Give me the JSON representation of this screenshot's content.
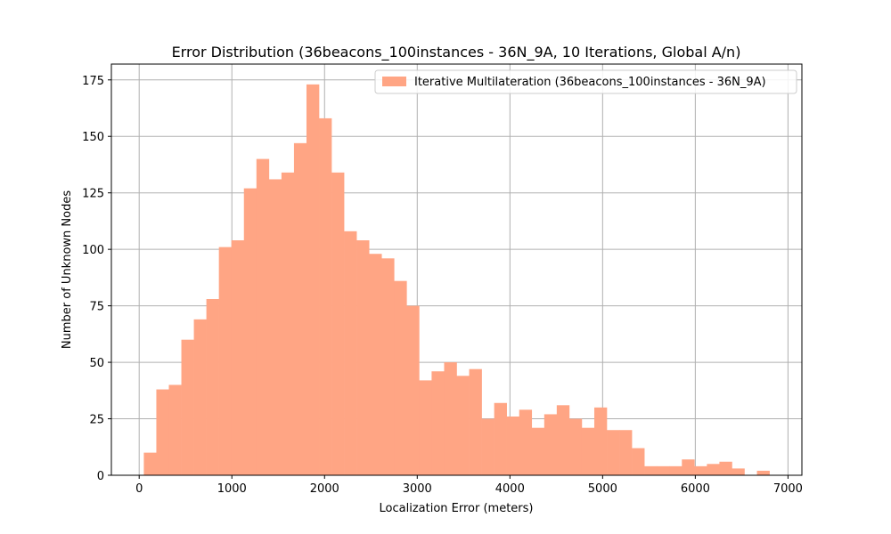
{
  "chart_data": {
    "type": "bar",
    "title": "Error Distribution (36beacons_100instances - 36N_9A, 10 Iterations, Global A/n)",
    "xlabel": "Localization Error (meters)",
    "ylabel": "Number of Unknown Nodes",
    "xlim": [
      -300,
      7150
    ],
    "ylim": [
      0,
      182
    ],
    "xticks": [
      0,
      1000,
      2000,
      3000,
      4000,
      5000,
      6000,
      7000
    ],
    "yticks": [
      0,
      25,
      50,
      75,
      100,
      125,
      150,
      175
    ],
    "grid": true,
    "legend_position": "upper right",
    "bar_color": "#FFA584",
    "series": [
      {
        "name": "Iterative Multilateration (36beacons_100instances - 36N_9A)",
        "bin_edges": [
          50,
          185,
          320,
          455,
          590,
          725,
          860,
          995,
          1130,
          1265,
          1400,
          1535,
          1670,
          1805,
          1940,
          2075,
          2210,
          2345,
          2480,
          2615,
          2750,
          2885,
          3020,
          3155,
          3290,
          3425,
          3560,
          3695,
          3830,
          3965,
          4100,
          4235,
          4370,
          4505,
          4640,
          4775,
          4910,
          5045,
          5180,
          5315,
          5450,
          5585,
          5720,
          5855,
          5990,
          6125,
          6260,
          6395,
          6530,
          6665,
          6800
        ],
        "counts": [
          10,
          38,
          40,
          60,
          69,
          78,
          101,
          104,
          127,
          140,
          131,
          134,
          147,
          173,
          158,
          134,
          108,
          104,
          98,
          96,
          86,
          75,
          42,
          46,
          50,
          44,
          47,
          25,
          32,
          26,
          29,
          21,
          27,
          31,
          25,
          21,
          30,
          20,
          20,
          12,
          4,
          4,
          4,
          7,
          4,
          5,
          6,
          3,
          0,
          2
        ]
      }
    ]
  }
}
